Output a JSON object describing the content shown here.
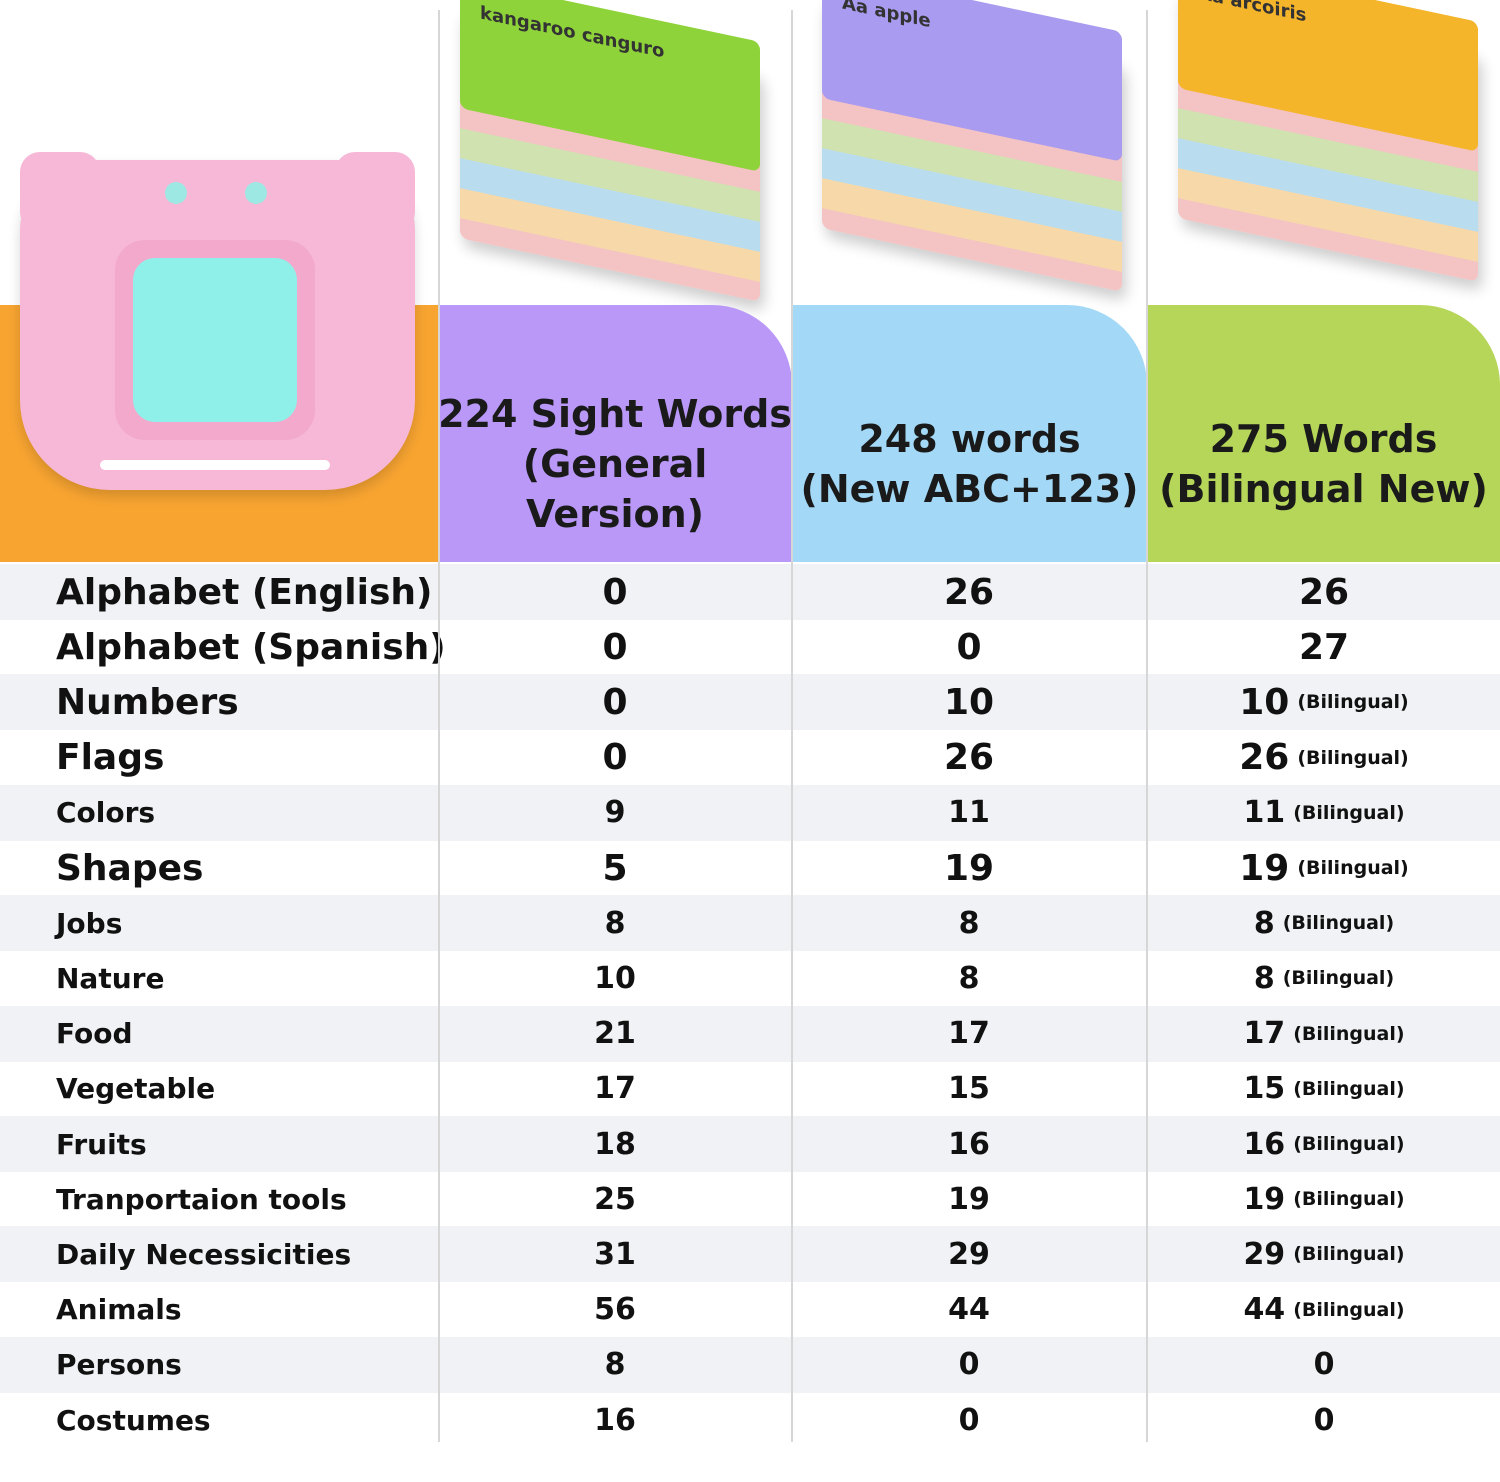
{
  "colors": {
    "orange": "#f7a431",
    "purple": "#b998f8",
    "blue": "#a3d9f6",
    "green": "#b6d65a"
  },
  "cards": [
    "kangaroo canguro",
    "Aa apple",
    "Aa arcoiris"
  ],
  "columns": [
    {
      "line1": "224 Sight Words",
      "line2": "(General Version)"
    },
    {
      "line1": "248 words",
      "line2": "(New ABC+123)"
    },
    {
      "line1": "275 Words",
      "line2": "(Bilingual New)"
    }
  ],
  "bilingual_label": "(Bilingual)",
  "rows": [
    {
      "label": "Alphabet (English)",
      "values": [
        "0",
        "26",
        "26"
      ],
      "bilingual": false
    },
    {
      "label": "Alphabet (Spanish)",
      "values": [
        "0",
        "0",
        "27"
      ],
      "bilingual": false
    },
    {
      "label": "Numbers",
      "values": [
        "0",
        "10",
        "10"
      ],
      "bilingual": true
    },
    {
      "label": "Flags",
      "values": [
        "0",
        "26",
        "26"
      ],
      "bilingual": true
    },
    {
      "label": "Colors",
      "values": [
        "9",
        "11",
        "11"
      ],
      "bilingual": true
    },
    {
      "label": "Shapes",
      "values": [
        "5",
        "19",
        "19"
      ],
      "bilingual": true
    },
    {
      "label": "Jobs",
      "values": [
        "8",
        "8",
        "8"
      ],
      "bilingual": true
    },
    {
      "label": "Nature",
      "values": [
        "10",
        "8",
        "8"
      ],
      "bilingual": true
    },
    {
      "label": "Food",
      "values": [
        "21",
        "17",
        "17"
      ],
      "bilingual": true
    },
    {
      "label": "Vegetable",
      "values": [
        "17",
        "15",
        "15"
      ],
      "bilingual": true
    },
    {
      "label": "Fruits",
      "values": [
        "18",
        "16",
        "16"
      ],
      "bilingual": true
    },
    {
      "label": "Tranportaion tools",
      "values": [
        "25",
        "19",
        "19"
      ],
      "bilingual": true
    },
    {
      "label": "Daily Necessicities",
      "values": [
        "31",
        "29",
        "29"
      ],
      "bilingual": true
    },
    {
      "label": "Animals",
      "values": [
        "56",
        "44",
        "44"
      ],
      "bilingual": true
    },
    {
      "label": "Persons",
      "values": [
        "8",
        "0",
        "0"
      ],
      "bilingual": false
    },
    {
      "label": "Costumes",
      "values": [
        "16",
        "0",
        "0"
      ],
      "bilingual": false
    }
  ]
}
